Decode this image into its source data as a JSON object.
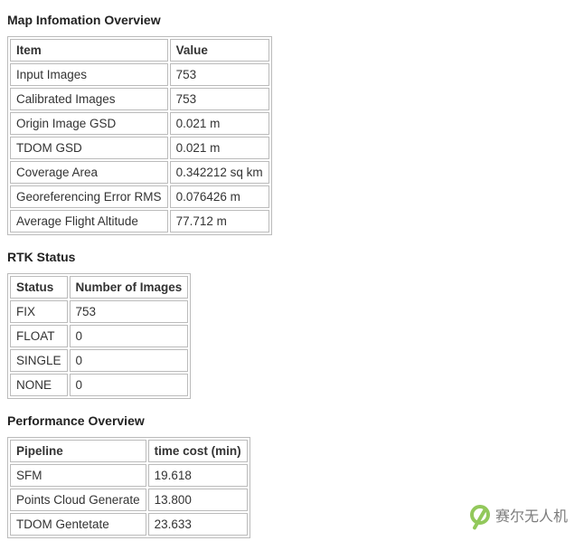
{
  "colors": {
    "page_bg": "#ffffff",
    "text": "#333333",
    "heading": "#222222",
    "border": "#bbbbbb",
    "cell_bg": "#ffffff",
    "watermark_ring": "#7fbf3f",
    "watermark_text": "#666666"
  },
  "typography": {
    "body_fontsize": 14,
    "cell_fontsize": 13.5,
    "heading_fontweight": "bold",
    "watermark_fontsize": 16,
    "font_family": "Microsoft YaHei"
  },
  "sections": {
    "map_info": {
      "title": "Map Infomation Overview",
      "columns": [
        "Item",
        "Value"
      ],
      "rows": [
        [
          "Input Images",
          "753"
        ],
        [
          "Calibrated Images",
          "753"
        ],
        [
          "Origin Image GSD",
          "0.021 m"
        ],
        [
          "TDOM GSD",
          "0.021 m"
        ],
        [
          "Coverage Area",
          "0.342212 sq km"
        ],
        [
          "Georeferencing Error RMS",
          "0.076426 m"
        ],
        [
          "Average Flight Altitude",
          "77.712 m"
        ]
      ]
    },
    "rtk_status": {
      "title": "RTK Status",
      "columns": [
        "Status",
        "Number of Images"
      ],
      "rows": [
        [
          "FIX",
          "753"
        ],
        [
          "FLOAT",
          "0"
        ],
        [
          "SINGLE",
          "0"
        ],
        [
          "NONE",
          "0"
        ]
      ]
    },
    "performance": {
      "title": "Performance Overview",
      "columns": [
        "Pipeline",
        "time cost (min)"
      ],
      "rows": [
        [
          "SFM",
          "19.618"
        ],
        [
          "Points Cloud Generate",
          "13.800"
        ],
        [
          "TDOM Gentetate",
          "23.633"
        ]
      ]
    }
  },
  "watermark": {
    "text": "赛尔无人机"
  }
}
